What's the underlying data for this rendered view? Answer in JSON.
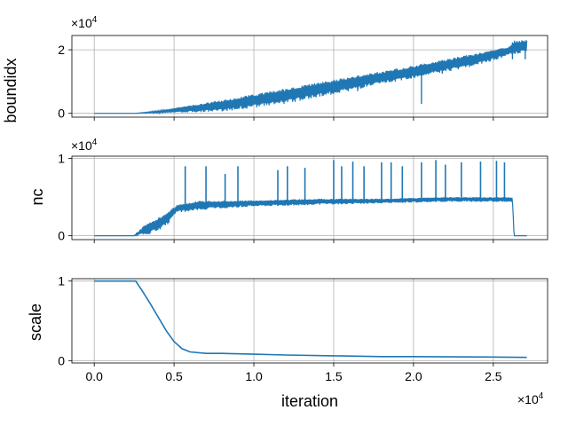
{
  "chart_data": [
    {
      "type": "line",
      "ylabel": "boundidx",
      "y_multiplier": "×10",
      "y_exponent": "4",
      "xlim": [
        -1400,
        28400
      ],
      "ylim": [
        -0.12,
        2.45
      ],
      "yticks": [
        0,
        2
      ],
      "ytick_labels": [
        "0",
        "2"
      ],
      "xticks": [
        0,
        5000,
        10000,
        15000,
        20000,
        25000
      ],
      "grid": true,
      "series": [
        {
          "upper": [
            [
              0,
              0.0
            ],
            [
              2600,
              0.0
            ],
            [
              4000,
              0.08
            ],
            [
              8000,
              0.42
            ],
            [
              12000,
              0.78
            ],
            [
              16000,
              1.15
            ],
            [
              20000,
              1.5
            ],
            [
              23000,
              1.8
            ],
            [
              26000,
              2.1
            ],
            [
              26300,
              2.3
            ],
            [
              27100,
              2.3
            ]
          ],
          "lower": [
            [
              0,
              0.0
            ],
            [
              2600,
              0.0
            ],
            [
              8000,
              0.05
            ],
            [
              12000,
              0.3
            ],
            [
              16000,
              0.7
            ],
            [
              20000,
              1.1
            ],
            [
              24000,
              1.5
            ],
            [
              26200,
              1.85
            ],
            [
              27100,
              1.9
            ]
          ],
          "drops": [
            [
              6200,
              0.05
            ],
            [
              9500,
              0.2
            ],
            [
              11800,
              0.35
            ],
            [
              13800,
              0.55
            ],
            [
              16500,
              0.7
            ],
            [
              19800,
              1.1
            ],
            [
              20500,
              0.3
            ],
            [
              21800,
              1.25
            ],
            [
              26200,
              1.7
            ],
            [
              27000,
              1.7
            ]
          ]
        }
      ]
    },
    {
      "type": "line",
      "ylabel": "nc",
      "y_multiplier": "×10",
      "y_exponent": "4",
      "xlim": [
        -1400,
        28400
      ],
      "ylim": [
        -0.05,
        1.03
      ],
      "yticks": [
        0,
        1
      ],
      "ytick_labels": [
        "0",
        "1"
      ],
      "xticks": [
        0,
        5000,
        10000,
        15000,
        20000,
        25000
      ],
      "grid": true,
      "series": [
        {
          "upper": [
            [
              0,
              0.0
            ],
            [
              2500,
              0.0
            ],
            [
              3200,
              0.15
            ],
            [
              4200,
              0.25
            ],
            [
              5200,
              0.4
            ],
            [
              6500,
              0.45
            ],
            [
              10000,
              0.46
            ],
            [
              14000,
              0.48
            ],
            [
              18000,
              0.48
            ],
            [
              22000,
              0.5
            ],
            [
              26000,
              0.5
            ],
            [
              26200,
              0.5
            ],
            [
              26300,
              0.0
            ],
            [
              27100,
              0.0
            ]
          ],
          "lower": [
            [
              0,
              0.0
            ],
            [
              2500,
              0.0
            ],
            [
              3500,
              0.02
            ],
            [
              4500,
              0.12
            ],
            [
              5200,
              0.3
            ],
            [
              7000,
              0.34
            ],
            [
              10000,
              0.38
            ],
            [
              14000,
              0.4
            ],
            [
              18000,
              0.42
            ],
            [
              22000,
              0.44
            ],
            [
              26200,
              0.44
            ],
            [
              26300,
              0.0
            ],
            [
              27100,
              0.0
            ]
          ],
          "spikes": [
            [
              5700,
              0.9
            ],
            [
              7000,
              0.9
            ],
            [
              8200,
              0.8
            ],
            [
              9000,
              0.9
            ],
            [
              11500,
              0.85
            ],
            [
              12100,
              0.9
            ],
            [
              13200,
              0.88
            ],
            [
              15000,
              0.98
            ],
            [
              15500,
              0.9
            ],
            [
              16200,
              0.96
            ],
            [
              16900,
              0.9
            ],
            [
              18000,
              0.95
            ],
            [
              18600,
              0.95
            ],
            [
              19300,
              0.9
            ],
            [
              20500,
              0.95
            ],
            [
              21400,
              0.98
            ],
            [
              22000,
              0.92
            ],
            [
              23000,
              0.95
            ],
            [
              24200,
              0.96
            ],
            [
              25200,
              0.97
            ],
            [
              25700,
              0.95
            ]
          ]
        }
      ]
    },
    {
      "type": "line",
      "ylabel": "scale",
      "xlabel": "iteration",
      "x_multiplier": "×10",
      "x_exponent": "4",
      "xlim": [
        -1400,
        28400
      ],
      "ylim": [
        -0.03,
        1.03
      ],
      "yticks": [
        0,
        1
      ],
      "ytick_labels": [
        "0",
        "1"
      ],
      "xticks": [
        0,
        5000,
        10000,
        15000,
        20000,
        25000
      ],
      "xtick_labels": [
        "0.0",
        "0.5",
        "1.0",
        "1.5",
        "2.0",
        "2.5"
      ],
      "grid": true,
      "series": [
        {
          "values": [
            [
              0,
              1.0
            ],
            [
              2600,
              1.0
            ],
            [
              3000,
              0.88
            ],
            [
              3500,
              0.72
            ],
            [
              4000,
              0.55
            ],
            [
              4500,
              0.38
            ],
            [
              5000,
              0.24
            ],
            [
              5500,
              0.15
            ],
            [
              6000,
              0.11
            ],
            [
              7000,
              0.09
            ],
            [
              8000,
              0.09
            ],
            [
              10000,
              0.08
            ],
            [
              12000,
              0.07
            ],
            [
              15000,
              0.06
            ],
            [
              18000,
              0.05
            ],
            [
              20000,
              0.05
            ],
            [
              25000,
              0.045
            ],
            [
              27100,
              0.04
            ]
          ]
        }
      ]
    }
  ],
  "colors": {
    "line": "#1f77b4",
    "grid": "#b0b0b0",
    "axes": "#000000"
  }
}
